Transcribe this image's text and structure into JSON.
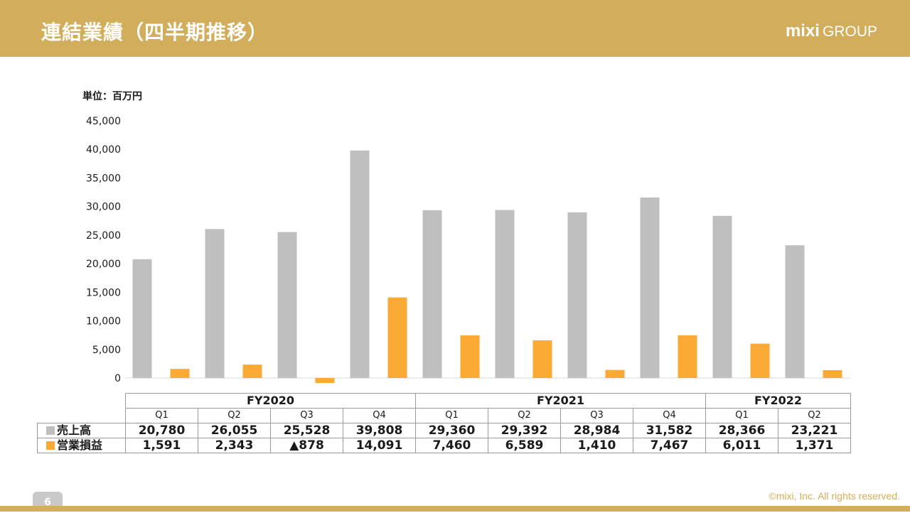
{
  "header": {
    "title": "連結業績（四半期推移）",
    "logo_main": "mixi",
    "logo_sub": "GROUP"
  },
  "unit_label": "単位：百万円",
  "chart_data": {
    "type": "bar",
    "years": [
      {
        "label": "FY2020",
        "span": 4
      },
      {
        "label": "FY2021",
        "span": 4
      },
      {
        "label": "FY2022",
        "span": 2
      }
    ],
    "categories": [
      "Q1",
      "Q2",
      "Q3",
      "Q4",
      "Q1",
      "Q2",
      "Q3",
      "Q4",
      "Q1",
      "Q2"
    ],
    "series": [
      {
        "name": "売上高",
        "color": "#bfbfbf",
        "values": [
          20780,
          26055,
          25528,
          39808,
          29360,
          29392,
          28984,
          31582,
          28366,
          23221
        ],
        "display": [
          "20,780",
          "26,055",
          "25,528",
          "39,808",
          "29,360",
          "29,392",
          "28,984",
          "31,582",
          "28,366",
          "23,221"
        ]
      },
      {
        "name": "営業損益",
        "color": "#f9a934",
        "values": [
          1591,
          2343,
          -878,
          14091,
          7460,
          6589,
          1410,
          7467,
          6011,
          1371
        ],
        "display": [
          "1,591",
          "2,343",
          "▲878",
          "14,091",
          "7,460",
          "6,589",
          "1,410",
          "7,467",
          "6,011",
          "1,371"
        ]
      }
    ],
    "yticks": [
      0,
      5000,
      10000,
      15000,
      20000,
      25000,
      30000,
      35000,
      40000,
      45000
    ],
    "yticklabels": [
      "0",
      "5,000",
      "10,000",
      "15,000",
      "20,000",
      "25,000",
      "30,000",
      "35,000",
      "40,000",
      "45,000"
    ],
    "ylim": [
      -1000,
      45000
    ],
    "grid": false,
    "legend": "data-table"
  },
  "footer": {
    "page_number": "6",
    "copyright": "©mixi, Inc. All rights reserved."
  }
}
